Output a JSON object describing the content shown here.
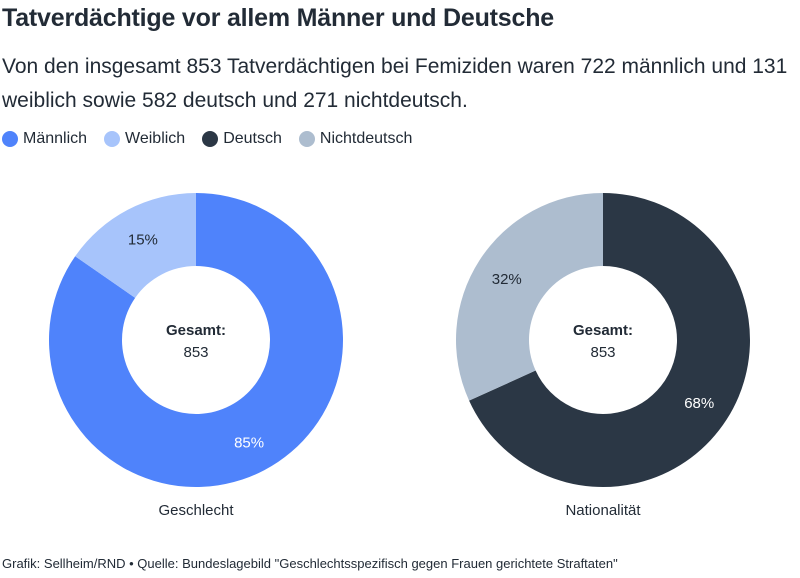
{
  "title": "Tatverdächtige vor allem Männer und Deutsche",
  "subtitle": "Von den insgesamt 853 Tatverdächtigen bei Femiziden waren 722 männlich und 131 weiblich sowie 582 deutsch und 271 nichtdeutsch.",
  "legend": [
    {
      "label": "Männlich",
      "color": "#4f83fb"
    },
    {
      "label": "Weiblich",
      "color": "#a7c4fb"
    },
    {
      "label": "Deutsch",
      "color": "#2b3745"
    },
    {
      "label": "Nichtdeutsch",
      "color": "#adbdcf"
    }
  ],
  "chart_data": [
    {
      "type": "pie",
      "label": "Geschlecht",
      "center_title": "Gesamt:",
      "center_value": "853",
      "slices": [
        {
          "name": "Männlich",
          "value": 722,
          "percent_label": "85%",
          "color": "#4f83fb",
          "label_color": "#ffffff"
        },
        {
          "name": "Weiblich",
          "value": 131,
          "percent_label": "15%",
          "color": "#a7c4fb",
          "label_color": "#222b36"
        }
      ]
    },
    {
      "type": "pie",
      "label": "Nationalität",
      "center_title": "Gesamt:",
      "center_value": "853",
      "slices": [
        {
          "name": "Deutsch",
          "value": 582,
          "percent_label": "68%",
          "color": "#2b3745",
          "label_color": "#ffffff"
        },
        {
          "name": "Nichtdeutsch",
          "value": 271,
          "percent_label": "32%",
          "color": "#adbdcf",
          "label_color": "#222b36"
        }
      ]
    }
  ],
  "source": "Grafik: Sellheim/RND • Quelle: Bundeslagebild \"Geschlechtsspezifisch gegen Frauen gerichtete Straftaten\""
}
